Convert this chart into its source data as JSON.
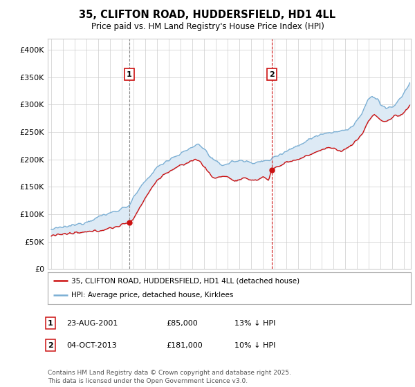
{
  "title": "35, CLIFTON ROAD, HUDDERSFIELD, HD1 4LL",
  "subtitle": "Price paid vs. HM Land Registry's House Price Index (HPI)",
  "ylabel_ticks": [
    "£0",
    "£50K",
    "£100K",
    "£150K",
    "£200K",
    "£250K",
    "£300K",
    "£350K",
    "£400K"
  ],
  "ytick_values": [
    0,
    50000,
    100000,
    150000,
    200000,
    250000,
    300000,
    350000,
    400000
  ],
  "ylim": [
    0,
    420000
  ],
  "xlim_start": 1994.7,
  "xlim_end": 2025.6,
  "hpi_color": "#7bafd4",
  "hpi_fill_color": "#ddeaf5",
  "price_color": "#cc1111",
  "marker1_date": 2001.645,
  "marker2_date": 2013.756,
  "marker1_price": 85000,
  "marker2_price": 181000,
  "legend_line1": "35, CLIFTON ROAD, HUDDERSFIELD, HD1 4LL (detached house)",
  "legend_line2": "HPI: Average price, detached house, Kirklees",
  "table_row1": [
    "1",
    "23-AUG-2001",
    "£85,000",
    "13% ↓ HPI"
  ],
  "table_row2": [
    "2",
    "04-OCT-2013",
    "£181,000",
    "10% ↓ HPI"
  ],
  "footnote": "Contains HM Land Registry data © Crown copyright and database right 2025.\nThis data is licensed under the Open Government Licence v3.0.",
  "background_color": "#ffffff",
  "grid_color": "#cccccc"
}
